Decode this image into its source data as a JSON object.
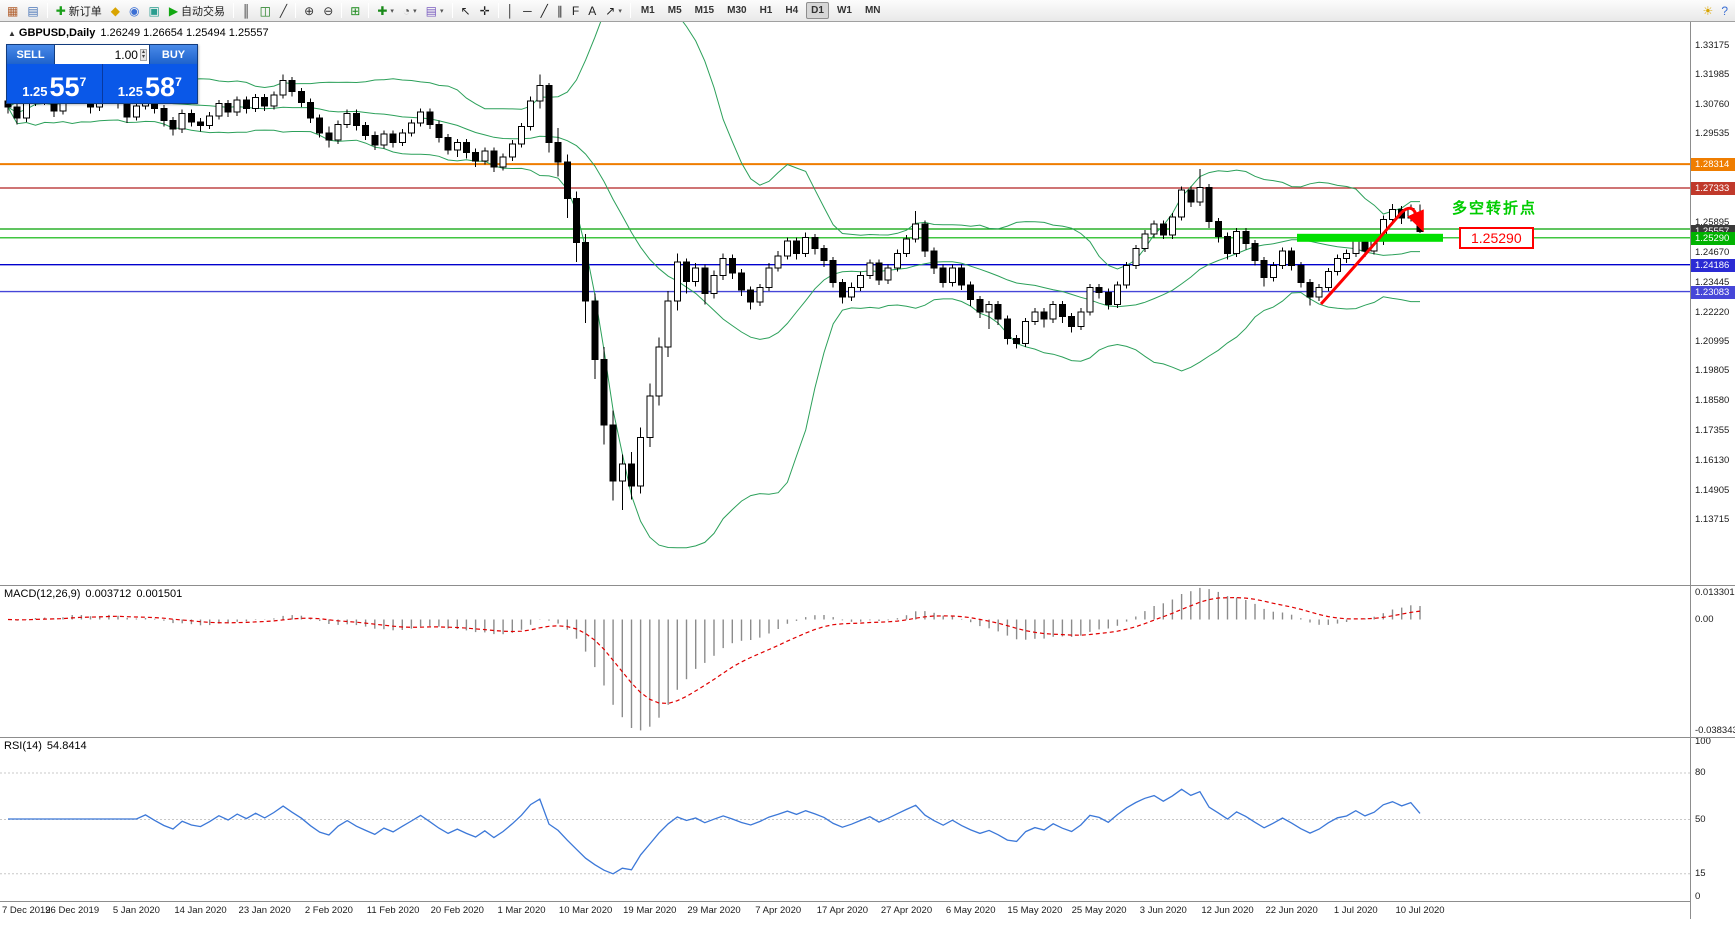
{
  "icons": {
    "collapse_marker": "▲",
    "spinner_up": "▴",
    "spinner_down": "▾",
    "dropdown_arrow": "▾"
  },
  "toolbar": {
    "groups": [
      {
        "buttons": [
          {
            "name": "new-chart-button",
            "glyph": "▦",
            "color": "#b05c2a"
          },
          {
            "name": "profiles-button",
            "glyph": "▤",
            "color": "#4a76b8"
          }
        ]
      },
      {
        "buttons": [
          {
            "name": "new-order-button",
            "glyph": "✚",
            "color": "#1a9e1a",
            "label": "新订单"
          },
          {
            "name": "market-watch-button",
            "glyph": "◆",
            "color": "#d9a400"
          },
          {
            "name": "navigator-button",
            "glyph": "◉",
            "color": "#3b6fd4"
          },
          {
            "name": "terminal-button",
            "glyph": "▣",
            "color": "#2a9d8f"
          },
          {
            "name": "autotrading-button",
            "glyph": "▶",
            "color": "#12a812",
            "label": "自动交易"
          }
        ]
      },
      {
        "buttons": [
          {
            "name": "bar-chart-button",
            "glyph": "║",
            "color": "#333333"
          },
          {
            "name": "candlestick-chart-button",
            "glyph": "◫",
            "color": "#1a7a1a"
          },
          {
            "name": "line-chart-button",
            "glyph": "╱",
            "color": "#333333"
          }
        ]
      },
      {
        "buttons": [
          {
            "name": "zoom-in-button",
            "glyph": "⊕",
            "color": "#333333"
          },
          {
            "name": "zoom-out-button",
            "glyph": "⊖",
            "color": "#333333"
          }
        ]
      },
      {
        "buttons": [
          {
            "name": "tile-windows-button",
            "glyph": "⊞",
            "color": "#1a8a1a"
          }
        ]
      },
      {
        "buttons": [
          {
            "name": "indicators-button",
            "glyph": "✚",
            "color": "#1a8a1a",
            "dropdown": true
          },
          {
            "name": "periods-button",
            "glyph": "◔",
            "color": "#555555",
            "dropdown": true
          },
          {
            "name": "templates-button",
            "glyph": "▤",
            "color": "#7a5cc0",
            "dropdown": true
          }
        ]
      },
      {
        "buttons": [
          {
            "name": "cursor-button",
            "glyph": "↖",
            "color": "#222222"
          },
          {
            "name": "crosshair-button",
            "glyph": "✛",
            "color": "#222222"
          }
        ]
      },
      {
        "buttons": [
          {
            "name": "vertical-line-button",
            "glyph": "│",
            "color": "#222222"
          },
          {
            "name": "horizontal-line-button",
            "glyph": "─",
            "color": "#222222"
          },
          {
            "name": "trendline-button",
            "glyph": "╱",
            "color": "#222222"
          },
          {
            "name": "channel-button",
            "glyph": "∥",
            "color": "#222222"
          },
          {
            "name": "fibonacci-button",
            "glyph": "F",
            "color": "#222222"
          },
          {
            "name": "text-button",
            "glyph": "A",
            "color": "#222222"
          },
          {
            "name": "arrows-button",
            "glyph": "↗",
            "color": "#222222",
            "dropdown": true
          }
        ]
      }
    ],
    "timeframes": [
      {
        "label": "M1"
      },
      {
        "label": "M5"
      },
      {
        "label": "M15"
      },
      {
        "label": "M30"
      },
      {
        "label": "H1"
      },
      {
        "label": "H4"
      },
      {
        "label": "D1",
        "active": true
      },
      {
        "label": "W1"
      },
      {
        "label": "MN"
      }
    ],
    "right_buttons": [
      {
        "name": "lightbulb-button",
        "glyph": "☀",
        "color": "#d9a400"
      },
      {
        "name": "help-button",
        "glyph": "?",
        "color": "#3b6fd4"
      }
    ]
  },
  "trade_panel": {
    "sell_label": "SELL",
    "buy_label": "BUY",
    "volume": "1.00",
    "sell_price_prefix": "1.25",
    "sell_price_big": "55",
    "sell_price_sup": "7",
    "buy_price_prefix": "1.25",
    "buy_price_big": "58",
    "buy_price_sup": "7"
  },
  "annotations": {
    "turning_point_text": "多空转折点",
    "callout_text": "1.25290",
    "green_bar": {
      "price": 1.2529,
      "color": "#00e000"
    },
    "arrow_color": "#ff0000"
  },
  "chart_data": {
    "type": "candlestick",
    "symbol": "GBPUSD",
    "timeframe": "Daily",
    "title": "GBPUSD,Daily",
    "ohlc_text": "1.26249 1.26654 1.25494 1.25557",
    "current_ohlc": {
      "open": 1.26249,
      "high": 1.26654,
      "low": 1.25494,
      "close": 1.25557
    },
    "bars_per_label": 7,
    "x_labels": [
      "7 Dec 2019",
      "26 Dec 2019",
      "5 Jan 2020",
      "14 Jan 2020",
      "23 Jan 2020",
      "2 Feb 2020",
      "11 Feb 2020",
      "20 Feb 2020",
      "1 Mar 2020",
      "10 Mar 2020",
      "19 Mar 2020",
      "29 Mar 2020",
      "7 Apr 2020",
      "17 Apr 2020",
      "27 Apr 2020",
      "6 May 2020",
      "15 May 2020",
      "25 May 2020",
      "3 Jun 2020",
      "12 Jun 2020",
      "22 Jun 2020",
      "1 Jul 2020",
      "10 Jul 2020"
    ],
    "y_axis": {
      "labels": [
        "1.33175",
        "1.31985",
        "1.30760",
        "1.29535",
        "1.25895",
        "1.24670",
        "1.23445",
        "1.22220",
        "1.20995",
        "1.19805",
        "1.18580",
        "1.17355",
        "1.16130",
        "1.14905",
        "1.13715"
      ],
      "tags": [
        {
          "value": "1.28314",
          "color": "#ef7d00"
        },
        {
          "value": "1.27333",
          "color": "#c0392b"
        },
        {
          "value": "1.25557",
          "color": "#3a3a3a"
        },
        {
          "value": "1.25290",
          "color": "#00b300"
        },
        {
          "value": "1.24186",
          "color": "#2b2bd4"
        },
        {
          "value": "1.23083",
          "color": "#4646d8"
        }
      ]
    },
    "hlines": [
      {
        "price": 1.28314,
        "color": "#ef7d00",
        "width": 2
      },
      {
        "price": 1.27333,
        "color": "#b22222",
        "width": 1.2
      },
      {
        "price": 1.2565,
        "color": "#00a000",
        "width": 1.2
      },
      {
        "price": 1.2529,
        "color": "#00b300",
        "width": 1.2
      },
      {
        "price": 1.24186,
        "color": "#0000cd",
        "width": 1.4
      },
      {
        "price": 1.23083,
        "color": "#4646d8",
        "width": 1.4
      }
    ],
    "indicators": {
      "bollinger": {
        "period": 20,
        "deviation": 2,
        "color": "#2ca05a"
      },
      "macd": {
        "label": "MACD(12,26,9)",
        "value": "0.003712",
        "signal_value": "0.001501",
        "axis_labels": [
          "0.013301",
          "0.00",
          "-0.038343"
        ],
        "histogram_color": "#8c8c8c",
        "signal_color": "#e00000"
      },
      "rsi": {
        "label": "RSI(14)",
        "value": "54.8414",
        "color": "#3c78d8",
        "axis_labels": [
          "100",
          "80",
          "50",
          "15",
          "0"
        ],
        "levels": [
          80,
          50,
          15
        ]
      }
    },
    "ohlc": [
      [
        1.309,
        1.3105,
        1.304,
        1.3065
      ],
      [
        1.3065,
        1.308,
        1.2995,
        1.302
      ],
      [
        1.302,
        1.31,
        1.3005,
        1.3085
      ],
      [
        1.3085,
        1.316,
        1.307,
        1.314
      ],
      [
        1.314,
        1.3155,
        1.3075,
        1.3095
      ],
      [
        1.3095,
        1.3115,
        1.3025,
        1.305
      ],
      [
        1.305,
        1.314,
        1.3035,
        1.312
      ],
      [
        1.312,
        1.32,
        1.31,
        1.318
      ],
      [
        1.318,
        1.3195,
        1.309,
        1.311
      ],
      [
        1.311,
        1.3125,
        1.304,
        1.3065
      ],
      [
        1.3065,
        1.3125,
        1.305,
        1.3105
      ],
      [
        1.3105,
        1.3185,
        1.309,
        1.3155
      ],
      [
        1.3155,
        1.317,
        1.306,
        1.308
      ],
      [
        1.308,
        1.3095,
        1.3,
        1.3025
      ],
      [
        1.3025,
        1.309,
        1.301,
        1.307
      ],
      [
        1.307,
        1.313,
        1.3055,
        1.311
      ],
      [
        1.311,
        1.3125,
        1.304,
        1.306
      ],
      [
        1.306,
        1.3075,
        1.2985,
        1.301
      ],
      [
        1.301,
        1.3025,
        1.295,
        1.2975
      ],
      [
        1.2975,
        1.3055,
        1.296,
        1.304
      ],
      [
        1.304,
        1.3055,
        1.2985,
        1.3005
      ],
      [
        1.3005,
        1.302,
        1.2965,
        1.299
      ],
      [
        1.299,
        1.3045,
        1.2975,
        1.303
      ],
      [
        1.303,
        1.3095,
        1.3015,
        1.308
      ],
      [
        1.308,
        1.3095,
        1.3025,
        1.3045
      ],
      [
        1.3045,
        1.311,
        1.303,
        1.3095
      ],
      [
        1.3095,
        1.311,
        1.304,
        1.306
      ],
      [
        1.306,
        1.312,
        1.3045,
        1.3105
      ],
      [
        1.3105,
        1.312,
        1.305,
        1.307
      ],
      [
        1.307,
        1.313,
        1.3055,
        1.3115
      ],
      [
        1.3115,
        1.32,
        1.31,
        1.3175
      ],
      [
        1.3175,
        1.319,
        1.311,
        1.313
      ],
      [
        1.313,
        1.3145,
        1.3065,
        1.3085
      ],
      [
        1.3085,
        1.31,
        1.3,
        1.302
      ],
      [
        1.302,
        1.3035,
        1.294,
        1.296
      ],
      [
        1.296,
        1.2985,
        1.29,
        1.293
      ],
      [
        1.293,
        1.301,
        1.2915,
        1.2995
      ],
      [
        1.2995,
        1.3055,
        1.298,
        1.304
      ],
      [
        1.304,
        1.3055,
        1.297,
        1.299
      ],
      [
        1.299,
        1.3005,
        1.293,
        1.295
      ],
      [
        1.295,
        1.2965,
        1.289,
        1.291
      ],
      [
        1.291,
        1.297,
        1.2895,
        1.2955
      ],
      [
        1.2955,
        1.297,
        1.29,
        1.292
      ],
      [
        1.292,
        1.2975,
        1.2905,
        1.296
      ],
      [
        1.296,
        1.3015,
        1.2945,
        1.3
      ],
      [
        1.3,
        1.306,
        1.2985,
        1.3045
      ],
      [
        1.3045,
        1.306,
        1.2975,
        1.2995
      ],
      [
        1.2995,
        1.301,
        1.292,
        1.294
      ],
      [
        1.294,
        1.2955,
        1.287,
        1.289
      ],
      [
        1.289,
        1.2935,
        1.286,
        1.292
      ],
      [
        1.292,
        1.2935,
        1.2855,
        1.288
      ],
      [
        1.288,
        1.2895,
        1.282,
        1.2845
      ],
      [
        1.2845,
        1.29,
        1.283,
        1.2885
      ],
      [
        1.2885,
        1.29,
        1.28,
        1.282
      ],
      [
        1.282,
        1.2875,
        1.2805,
        1.286
      ],
      [
        1.286,
        1.293,
        1.2845,
        1.2915
      ],
      [
        1.2915,
        1.3,
        1.29,
        1.2985
      ],
      [
        1.2985,
        1.311,
        1.297,
        1.309
      ],
      [
        1.309,
        1.32,
        1.306,
        1.3155
      ],
      [
        1.3155,
        1.3165,
        1.288,
        1.292
      ],
      [
        1.292,
        1.298,
        1.278,
        1.284
      ],
      [
        1.284,
        1.287,
        1.261,
        1.269
      ],
      [
        1.269,
        1.272,
        1.243,
        1.251
      ],
      [
        1.251,
        1.2545,
        1.218,
        1.227
      ],
      [
        1.227,
        1.23,
        1.195,
        1.203
      ],
      [
        1.203,
        1.208,
        1.168,
        1.176
      ],
      [
        1.176,
        1.182,
        1.145,
        1.153
      ],
      [
        1.153,
        1.164,
        1.1412,
        1.16
      ],
      [
        1.16,
        1.165,
        1.1455,
        1.151
      ],
      [
        1.151,
        1.175,
        1.148,
        1.171
      ],
      [
        1.171,
        1.193,
        1.167,
        1.188
      ],
      [
        1.188,
        1.212,
        1.184,
        1.208
      ],
      [
        1.208,
        1.231,
        1.204,
        1.227
      ],
      [
        1.227,
        1.2465,
        1.223,
        1.243
      ],
      [
        1.243,
        1.2445,
        1.23,
        1.235
      ],
      [
        1.235,
        1.2425,
        1.233,
        1.2405
      ],
      [
        1.2405,
        1.242,
        1.2255,
        1.23
      ],
      [
        1.23,
        1.2395,
        1.228,
        1.2375
      ],
      [
        1.2375,
        1.2465,
        1.2355,
        1.2445
      ],
      [
        1.2445,
        1.246,
        1.236,
        1.2385
      ],
      [
        1.2385,
        1.24,
        1.229,
        1.2315
      ],
      [
        1.2315,
        1.233,
        1.2235,
        1.2265
      ],
      [
        1.2265,
        1.234,
        1.225,
        1.2325
      ],
      [
        1.2325,
        1.2425,
        1.231,
        1.2405
      ],
      [
        1.2405,
        1.2475,
        1.239,
        1.2455
      ],
      [
        1.2455,
        1.253,
        1.244,
        1.2515
      ],
      [
        1.2515,
        1.253,
        1.244,
        1.2465
      ],
      [
        1.2465,
        1.255,
        1.245,
        1.253
      ],
      [
        1.253,
        1.2545,
        1.246,
        1.2485
      ],
      [
        1.2485,
        1.25,
        1.241,
        1.2435
      ],
      [
        1.2435,
        1.245,
        1.2325,
        1.2345
      ],
      [
        1.2345,
        1.236,
        1.226,
        1.2285
      ],
      [
        1.2285,
        1.2345,
        1.227,
        1.2325
      ],
      [
        1.2325,
        1.239,
        1.231,
        1.2375
      ],
      [
        1.2375,
        1.244,
        1.236,
        1.2425
      ],
      [
        1.2425,
        1.244,
        1.2335,
        1.2355
      ],
      [
        1.2355,
        1.242,
        1.234,
        1.2405
      ],
      [
        1.2405,
        1.248,
        1.239,
        1.2465
      ],
      [
        1.2465,
        1.254,
        1.245,
        1.2525
      ],
      [
        1.2525,
        1.264,
        1.251,
        1.2585
      ],
      [
        1.2585,
        1.26,
        1.245,
        1.2475
      ],
      [
        1.2475,
        1.249,
        1.238,
        1.2405
      ],
      [
        1.2405,
        1.242,
        1.2325,
        1.2345
      ],
      [
        1.2345,
        1.242,
        1.233,
        1.2405
      ],
      [
        1.2405,
        1.242,
        1.2315,
        1.2335
      ],
      [
        1.2335,
        1.235,
        1.225,
        1.2275
      ],
      [
        1.2275,
        1.229,
        1.22,
        1.2225
      ],
      [
        1.2225,
        1.227,
        1.2155,
        1.2255
      ],
      [
        1.2255,
        1.227,
        1.217,
        1.2195
      ],
      [
        1.2195,
        1.221,
        1.209,
        1.2115
      ],
      [
        1.2115,
        1.213,
        1.2075,
        1.2095
      ],
      [
        1.2095,
        1.22,
        1.208,
        1.2185
      ],
      [
        1.2185,
        1.224,
        1.217,
        1.2225
      ],
      [
        1.2225,
        1.224,
        1.216,
        1.2195
      ],
      [
        1.2195,
        1.227,
        1.218,
        1.2255
      ],
      [
        1.2255,
        1.227,
        1.218,
        1.2205
      ],
      [
        1.2205,
        1.222,
        1.214,
        1.2165
      ],
      [
        1.2165,
        1.224,
        1.215,
        1.2225
      ],
      [
        1.2225,
        1.234,
        1.221,
        1.2325
      ],
      [
        1.2325,
        1.234,
        1.228,
        1.2305
      ],
      [
        1.2305,
        1.232,
        1.2235,
        1.2255
      ],
      [
        1.2255,
        1.235,
        1.224,
        1.2335
      ],
      [
        1.2335,
        1.243,
        1.232,
        1.2415
      ],
      [
        1.2415,
        1.25,
        1.24,
        1.2485
      ],
      [
        1.2485,
        1.256,
        1.247,
        1.2545
      ],
      [
        1.2545,
        1.26,
        1.253,
        1.2585
      ],
      [
        1.2585,
        1.26,
        1.2525,
        1.254
      ],
      [
        1.254,
        1.263,
        1.2525,
        1.2615
      ],
      [
        1.2615,
        1.274,
        1.26,
        1.2725
      ],
      [
        1.2725,
        1.274,
        1.2655,
        1.2675
      ],
      [
        1.2675,
        1.2812,
        1.266,
        1.2735
      ],
      [
        1.2735,
        1.275,
        1.257,
        1.2595
      ],
      [
        1.2595,
        1.261,
        1.251,
        1.2535
      ],
      [
        1.2535,
        1.255,
        1.244,
        1.2465
      ],
      [
        1.2465,
        1.257,
        1.245,
        1.2555
      ],
      [
        1.2555,
        1.257,
        1.248,
        1.2505
      ],
      [
        1.2505,
        1.252,
        1.2415,
        1.2435
      ],
      [
        1.2435,
        1.245,
        1.233,
        1.2365
      ],
      [
        1.2365,
        1.243,
        1.235,
        1.2415
      ],
      [
        1.2415,
        1.249,
        1.24,
        1.2475
      ],
      [
        1.2475,
        1.249,
        1.2395,
        1.2415
      ],
      [
        1.2415,
        1.243,
        1.2325,
        1.2345
      ],
      [
        1.2345,
        1.236,
        1.2252,
        1.2285
      ],
      [
        1.2285,
        1.234,
        1.227,
        1.2325
      ],
      [
        1.2325,
        1.2405,
        1.231,
        1.239
      ],
      [
        1.239,
        1.246,
        1.2375,
        1.2445
      ],
      [
        1.2445,
        1.248,
        1.2425,
        1.2465
      ],
      [
        1.2465,
        1.254,
        1.245,
        1.2525
      ],
      [
        1.2525,
        1.254,
        1.245,
        1.2475
      ],
      [
        1.2475,
        1.253,
        1.246,
        1.2515
      ],
      [
        1.2515,
        1.262,
        1.25,
        1.2605
      ],
      [
        1.2605,
        1.2668,
        1.259,
        1.2645
      ],
      [
        1.2645,
        1.266,
        1.2585,
        1.261
      ],
      [
        1.261,
        1.2665,
        1.2595,
        1.265
      ],
      [
        1.26249,
        1.26654,
        1.25494,
        1.25557
      ]
    ]
  }
}
